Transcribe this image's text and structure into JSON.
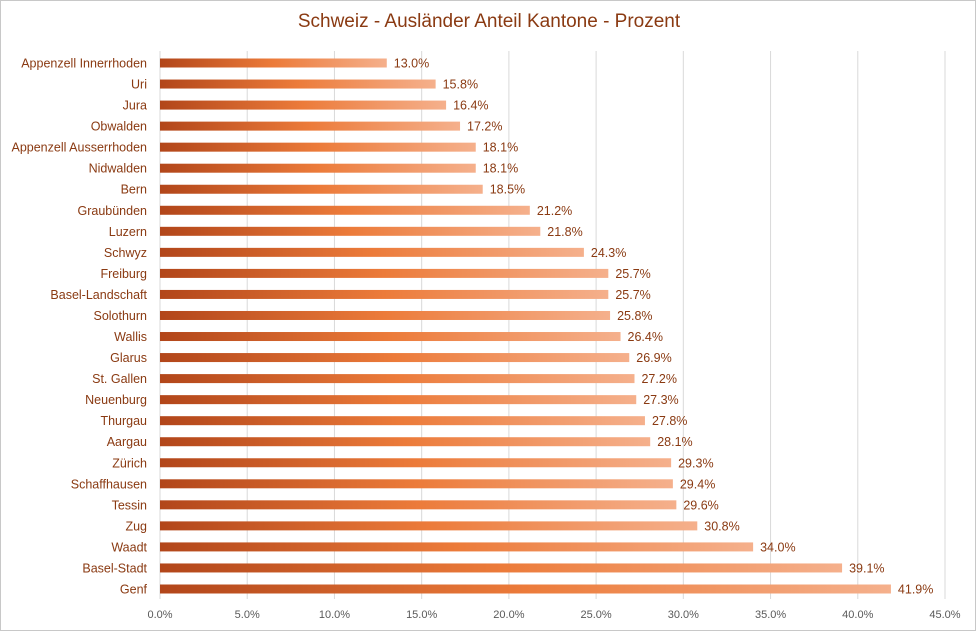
{
  "chart_data": {
    "type": "bar",
    "orientation": "horizontal",
    "title": "Schweiz - Ausländer Anteil Kantone - Prozent",
    "xlabel": "",
    "ylabel": "",
    "xlim": [
      0,
      45
    ],
    "x_ticks": [
      "0.0%",
      "5.0%",
      "10.0%",
      "15.0%",
      "20.0%",
      "25.0%",
      "30.0%",
      "35.0%",
      "40.0%",
      "45.0%"
    ],
    "grid": true,
    "categories": [
      "Appenzell Innerrhoden",
      "Uri",
      "Jura",
      "Obwalden",
      "Appenzell Ausserrhoden",
      "Nidwalden",
      "Bern",
      "Graubünden",
      "Luzern",
      "Schwyz",
      "Freiburg",
      "Basel-Landschaft",
      "Solothurn",
      "Wallis",
      "Glarus",
      "St. Gallen",
      "Neuenburg",
      "Thurgau",
      "Aargau",
      "Zürich",
      "Schaffhausen",
      "Tessin",
      "Zug",
      "Waadt",
      "Basel-Stadt",
      "Genf"
    ],
    "values": [
      13.0,
      15.8,
      16.4,
      17.2,
      18.1,
      18.1,
      18.5,
      21.2,
      21.8,
      24.3,
      25.7,
      25.7,
      25.8,
      26.4,
      26.9,
      27.2,
      27.3,
      27.8,
      28.1,
      29.3,
      29.4,
      29.6,
      30.8,
      34.0,
      39.1,
      41.9
    ],
    "data_labels": [
      "13.0%",
      "15.8%",
      "16.4%",
      "17.2%",
      "18.1%",
      "18.1%",
      "18.5%",
      "21.2%",
      "21.8%",
      "24.3%",
      "25.7%",
      "25.7%",
      "25.8%",
      "26.4%",
      "26.9%",
      "27.2%",
      "27.3%",
      "27.8%",
      "28.1%",
      "29.3%",
      "29.4%",
      "29.6%",
      "30.8%",
      "34.0%",
      "39.1%",
      "41.9%"
    ],
    "colors": {
      "bar_start": "#b2461a",
      "bar_mid": "#ec7b3a",
      "bar_end": "#f5b08c",
      "label": "#8a3a12",
      "grid": "#d9d9d9",
      "tick": "#595959"
    }
  }
}
